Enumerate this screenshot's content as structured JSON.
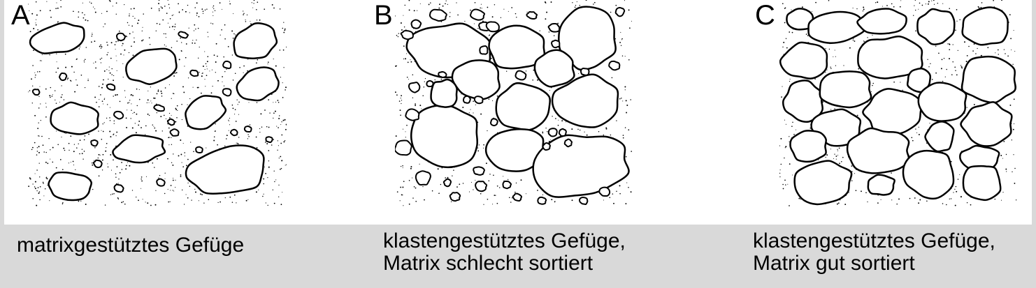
{
  "panels": [
    {
      "letter": "A",
      "caption_lines": [
        "matrixgestütztes Gefüge"
      ]
    },
    {
      "letter": "B",
      "caption_lines": [
        "klastengestütztes Gefüge,",
        "Matrix schlecht sortiert"
      ]
    },
    {
      "letter": "C",
      "caption_lines": [
        "klastengestütztes Gefüge,",
        "Matrix gut sortiert"
      ]
    }
  ],
  "colors": {
    "background": "#d9d9d9",
    "panel": "#ffffff",
    "ink": "#000000"
  }
}
